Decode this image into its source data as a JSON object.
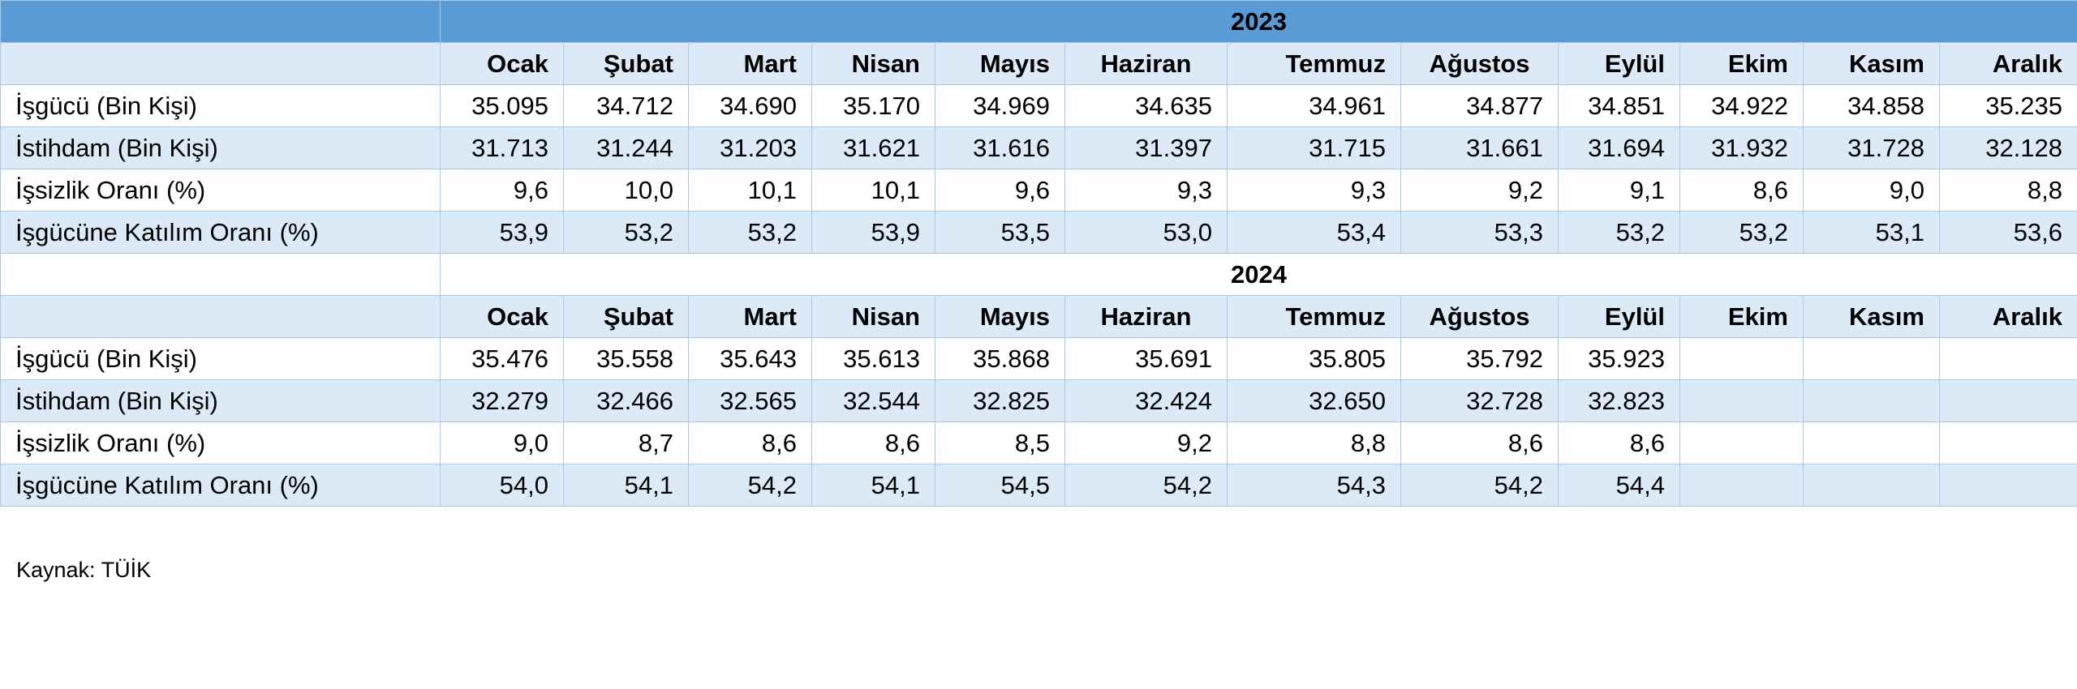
{
  "months_2023": [
    "Ocak",
    "Şubat",
    "Mart",
    "Nisan",
    "Mayıs",
    "Haziran",
    "Temmuz",
    "Ağustos",
    "Eylül",
    "Ekim",
    "Kasım",
    "Aralık"
  ],
  "months_2024": [
    "Ocak",
    "Şubat",
    "Mart",
    "Nisan",
    "Mayıs",
    "Haziran",
    "Temmuz",
    "Ağustos",
    "Eylül",
    "Ekim",
    "Kasım",
    "Aralık"
  ],
  "year_2023": "2023",
  "year_2024": "2024",
  "rows_2023": [
    {
      "label": "İşgücü (Bin Kişi)",
      "values": [
        "35.095",
        "34.712",
        "34.690",
        "35.170",
        "34.969",
        "34.635",
        "34.961",
        "34.877",
        "34.851",
        "34.922",
        "34.858",
        "35.235"
      ]
    },
    {
      "label": "İstihdam (Bin Kişi)",
      "values": [
        "31.713",
        "31.244",
        "31.203",
        "31.621",
        "31.616",
        "31.397",
        "31.715",
        "31.661",
        "31.694",
        "31.932",
        "31.728",
        "32.128"
      ]
    },
    {
      "label": "İşsizlik Oranı (%)",
      "values": [
        "9,6",
        "10,0",
        "10,1",
        "10,1",
        "9,6",
        "9,3",
        "9,3",
        "9,2",
        "9,1",
        "8,6",
        "9,0",
        "8,8"
      ]
    },
    {
      "label": "İşgücüne Katılım Oranı (%)",
      "values": [
        "53,9",
        "53,2",
        "53,2",
        "53,9",
        "53,5",
        "53,0",
        "53,4",
        "53,3",
        "53,2",
        "53,2",
        "53,1",
        "53,6"
      ]
    }
  ],
  "rows_2024": [
    {
      "label": "İşgücü (Bin Kişi)",
      "values": [
        "35.476",
        "35.558",
        "35.643",
        "35.613",
        "35.868",
        "35.691",
        "35.805",
        "35.792",
        "35.923",
        "",
        "",
        ""
      ]
    },
    {
      "label": "İstihdam (Bin Kişi)",
      "values": [
        "32.279",
        "32.466",
        "32.565",
        "32.544",
        "32.825",
        "32.424",
        "32.650",
        "32.728",
        "32.823",
        "",
        "",
        ""
      ]
    },
    {
      "label": "İşsizlik Oranı (%)",
      "values": [
        "9,0",
        "8,7",
        "8,6",
        "8,6",
        "8,5",
        "9,2",
        "8,8",
        "8,6",
        "8,6",
        "",
        "",
        ""
      ]
    },
    {
      "label": "İşgücüne Katılım Oranı (%)",
      "values": [
        "54,0",
        "54,1",
        "54,2",
        "54,1",
        "54,5",
        "54,2",
        "54,3",
        "54,2",
        "54,4",
        "",
        "",
        ""
      ]
    }
  ],
  "source": "Kaynak: TÜİK"
}
